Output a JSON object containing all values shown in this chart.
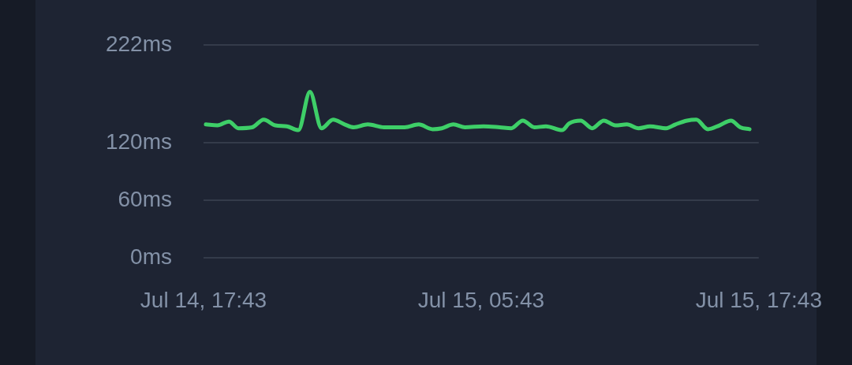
{
  "chart_data": {
    "type": "line",
    "x": [
      "--07-14T17:49",
      "--07-14T18:19",
      "--07-14T18:49",
      "--07-14T19:13",
      "--07-14T19:49",
      "--07-14T20:19",
      "--07-14T20:49",
      "--07-14T21:19",
      "--07-14T21:49",
      "--07-14T22:19",
      "--07-14T22:49",
      "--07-14T23:19",
      "--07-14T23:49",
      "--07-15T00:13",
      "--07-15T00:49",
      "--07-15T01:31",
      "--07-15T02:25",
      "--07-15T03:01",
      "--07-15T03:37",
      "--07-15T04:01",
      "--07-15T04:31",
      "--07-15T05:01",
      "--07-15T05:49",
      "--07-15T06:31",
      "--07-15T07:01",
      "--07-15T07:31",
      "--07-15T08:01",
      "--07-15T08:31",
      "--07-15T09:13",
      "--07-15T09:31",
      "--07-15T10:01",
      "--07-15T10:31",
      "--07-15T11:01",
      "--07-15T11:31",
      "--07-15T12:01",
      "--07-15T12:31",
      "--07-15T13:01",
      "--07-15T13:43",
      "--07-15T14:07",
      "--07-15T14:37",
      "--07-15T15:01",
      "--07-15T15:31",
      "--07-15T16:01",
      "--07-15T16:31",
      "--07-15T16:55",
      "--07-15T17:19"
    ],
    "values": [
      139,
      138,
      142,
      135,
      136,
      144,
      138,
      137,
      133,
      173,
      135,
      144,
      139,
      136,
      139,
      136,
      136,
      139,
      134,
      135,
      139,
      136,
      137,
      136,
      135,
      143,
      136,
      137,
      133,
      140,
      143,
      135,
      143,
      138,
      139,
      135,
      137,
      135,
      139,
      143,
      144,
      134,
      138,
      143,
      136,
      134
    ],
    "color": "#3ecf68",
    "xlim": [
      "--07-14T17:43",
      "--07-15T17:43"
    ],
    "xticks": [
      {
        "value": "--07-14T17:43",
        "label": "Jul 14, 17:43"
      },
      {
        "value": "--07-15T05:43",
        "label": "Jul 15, 05:43"
      },
      {
        "value": "--07-15T17:43",
        "label": "Jul 15, 17:43"
      }
    ],
    "ylim": [
      0,
      222
    ],
    "yticks": [
      {
        "value": 0,
        "label": "0ms"
      },
      {
        "value": 60,
        "label": "60ms"
      },
      {
        "value": 120,
        "label": "120ms"
      },
      {
        "value": 222,
        "label": "222ms"
      }
    ],
    "grid": "y",
    "legend": false,
    "marker": "none",
    "line_style": "solid"
  }
}
